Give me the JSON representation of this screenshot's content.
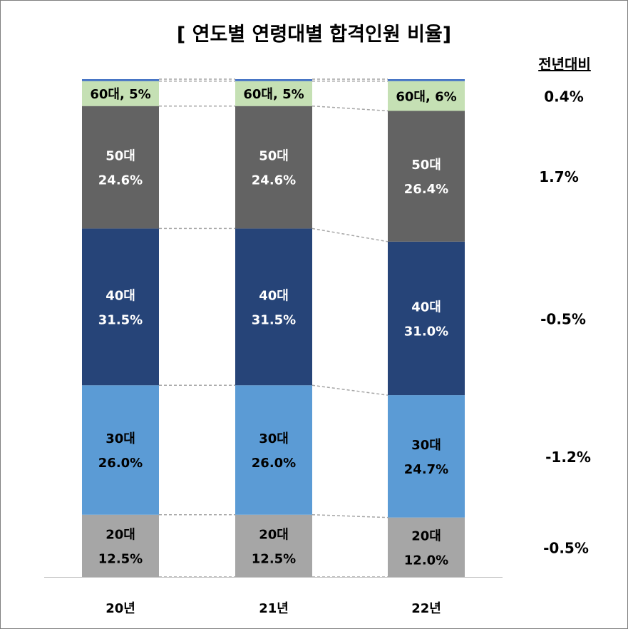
{
  "title": "[ 연도별 연령대별 합격인원 비율]",
  "yoy_header": "전년대비",
  "chart_data": {
    "type": "bar",
    "stacked": true,
    "normalized": true,
    "categories": [
      "20년",
      "21년",
      "22년"
    ],
    "series": [
      {
        "key": "20s",
        "values": [
          12.5,
          12.5,
          12.0
        ],
        "labels": [
          "20대\n12.5%",
          "20대\n12.5%",
          "20대\n12.0%"
        ],
        "color": "#a6a6a6",
        "text_color": "#000000"
      },
      {
        "key": "30s",
        "values": [
          26.0,
          26.0,
          24.7
        ],
        "labels": [
          "30대\n26.0%",
          "30대\n26.0%",
          "30대\n24.7%"
        ],
        "color": "#5b9bd5",
        "text_color": "#000000"
      },
      {
        "key": "40s",
        "values": [
          31.5,
          31.5,
          31.0
        ],
        "labels": [
          "40대\n31.5%",
          "40대\n31.5%",
          "40대\n31.0%"
        ],
        "color": "#264478",
        "text_color": "#ffffff"
      },
      {
        "key": "50s",
        "values": [
          24.6,
          24.6,
          26.4
        ],
        "labels": [
          "50대\n24.6%",
          "50대\n24.6%",
          "50대\n26.4%"
        ],
        "color": "#636363",
        "text_color": "#ffffff"
      },
      {
        "key": "60s",
        "values": [
          5,
          5,
          6
        ],
        "labels": [
          "60대, 5%",
          "60대, 5%",
          "60대, 6%"
        ],
        "color": "#c5e0b4",
        "text_color": "#000000"
      },
      {
        "key": "70s",
        "values": [
          0.4,
          0.4,
          0.4
        ],
        "labels": [
          "",
          "",
          ""
        ],
        "color": "#4472c4",
        "text_color": "#000000"
      }
    ],
    "yoy_change": [
      "0.4%",
      "1.7%",
      "-0.5%",
      "-1.2%",
      "-0.5%"
    ],
    "ylim": [
      0,
      100
    ],
    "grid": false,
    "connector_lines": "dashed"
  }
}
